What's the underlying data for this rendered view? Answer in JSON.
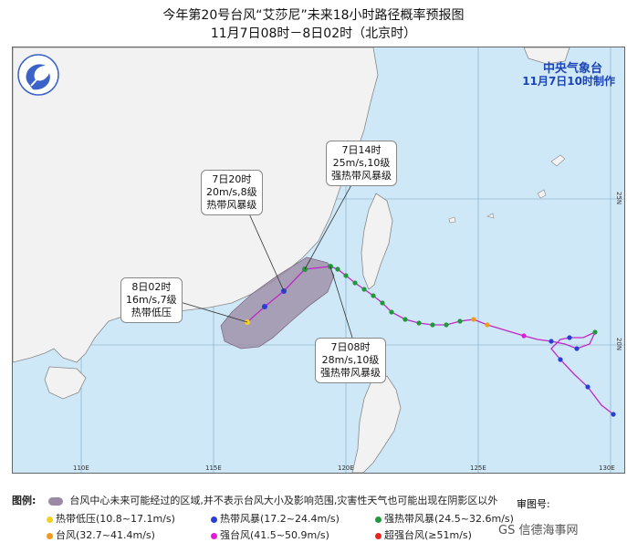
{
  "title": "今年第20号台风“艾莎尼”未来18小时路径概率预报图",
  "subtitle": "11月7日08时－8日02时（北京时）",
  "agency": "中央气象台",
  "issued": "11月7日10时制作",
  "callouts": [
    {
      "id": "c14",
      "time": "7日14时",
      "wind": "25m/s,10级",
      "grade": "强热带风暴级"
    },
    {
      "id": "c20",
      "time": "7日20时",
      "wind": "20m/s,8级",
      "grade": "热带风暴级"
    },
    {
      "id": "c02",
      "time": "8日02时",
      "wind": "16m/s,7级",
      "grade": "热带低压"
    },
    {
      "id": "c08",
      "time": "7日08时",
      "wind": "28m/s,10级",
      "grade": "强热带风暴级"
    }
  ],
  "lon_labels": [
    "110E",
    "115E",
    "120E",
    "125E",
    "130E"
  ],
  "lat_labels": [
    "25N",
    "20N"
  ],
  "legend": {
    "heading": "图例:",
    "cone_text": "台风中心未来可能经过的区域,并不表示台风大小及影响范围,灾害性天气也可能出现在阴影区以外",
    "items": [
      {
        "label": "热带低压(10.8~17.1m/s)",
        "color": "#f2d21e"
      },
      {
        "label": "热带风暴(17.2~24.4m/s)",
        "color": "#2a3fd6"
      },
      {
        "label": "强热带风暴(24.5~32.6m/s)",
        "color": "#1f9a3a"
      },
      {
        "label": "台风(32.7~41.4m/s)",
        "color": "#f39a1b"
      },
      {
        "label": "强台风(41.5~50.9m/s)",
        "color": "#e21ad8"
      },
      {
        "label": "超强台风(≥51m/s)",
        "color": "#e8241b"
      }
    ],
    "review_label": "审图号:",
    "watermark": "GS 信德海事网"
  },
  "colors": {
    "sea": "#cfe8f7",
    "land": "#f2f2f2",
    "cone": "#9b8aa3",
    "track": "#c028c8"
  }
}
